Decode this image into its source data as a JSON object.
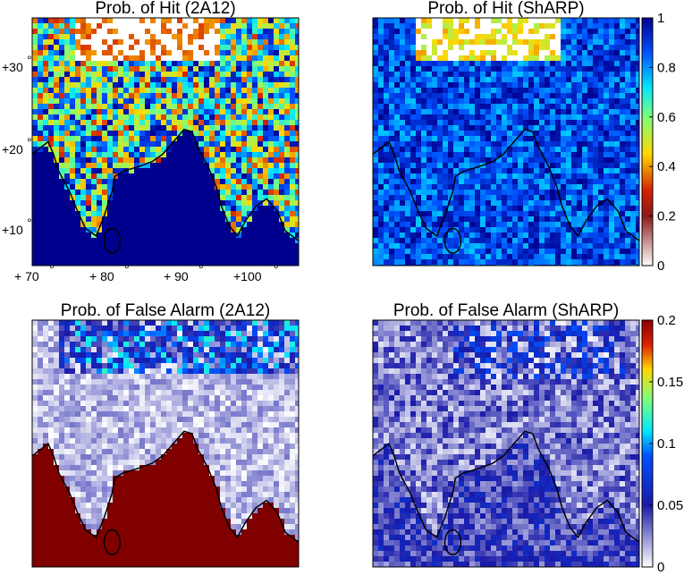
{
  "chart_data": [
    {
      "type": "heatmap",
      "title": "Prob. of Hit (2A12)",
      "xticks": [
        "+ 70",
        "+ 80",
        "+ 90",
        "+100"
      ],
      "yticks": [
        "+30",
        "+20",
        "+10"
      ],
      "xlim": [
        68,
        106
      ],
      "ylim": [
        5,
        35
      ],
      "colorbar": false,
      "ocean_value": 0.0,
      "land_value_range": [
        0.3,
        1.0
      ]
    },
    {
      "type": "heatmap",
      "title": "Prob. of Hit (ShARP)",
      "xlim": [
        68,
        106
      ],
      "ylim": [
        5,
        35
      ],
      "colorbar": true,
      "colorbar_range": [
        0,
        1
      ],
      "colorbar_ticks": [
        "0",
        "0.2",
        "0.4",
        "0.6",
        "0.8",
        "1"
      ],
      "colormap": "white-brown-red-yellow-cyan-blue",
      "value_range": [
        0.75,
        1.0
      ]
    },
    {
      "type": "heatmap",
      "title": "Prob. of False Alarm (2A12)",
      "xlim": [
        68,
        106
      ],
      "ylim": [
        5,
        35
      ],
      "colorbar": false,
      "ocean_value": 0.2,
      "land_value_range": [
        0.0,
        0.05
      ]
    },
    {
      "type": "heatmap",
      "title": "Prob. of False Alarm (ShARP)",
      "xlim": [
        68,
        106
      ],
      "ylim": [
        5,
        35
      ],
      "colorbar": true,
      "colorbar_range": [
        0,
        0.2
      ],
      "colorbar_ticks": [
        "0",
        "0.05",
        "0.1",
        "0.15",
        "0.2"
      ],
      "colormap": "white-blue-cyan-yellow-red",
      "value_range": [
        0.0,
        0.07
      ]
    }
  ],
  "colors": {
    "deep_blue": "#00008f",
    "dark_red": "#800000",
    "coast_line": "#000000"
  }
}
